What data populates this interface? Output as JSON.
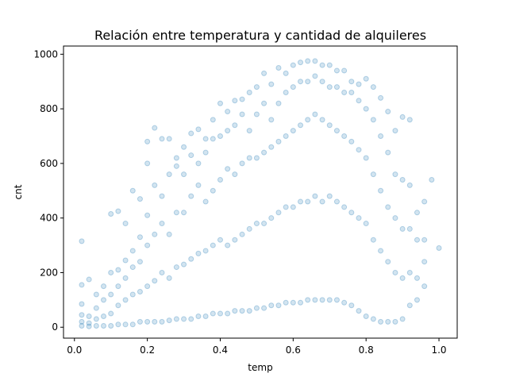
{
  "chart_data": {
    "type": "scatter",
    "title": "Relación entre temperatura y cantidad de alquileres",
    "xlabel": "temp",
    "ylabel": "cnt",
    "xlim": [
      -0.03,
      1.05
    ],
    "ylim": [
      -40,
      1030
    ],
    "x_ticks": [
      0.0,
      0.2,
      0.4,
      0.6,
      0.8,
      1.0
    ],
    "x_tick_labels": [
      "0.0",
      "0.2",
      "0.4",
      "0.6",
      "0.8",
      "1.0"
    ],
    "y_ticks": [
      0,
      200,
      400,
      600,
      800,
      1000
    ],
    "y_tick_labels": [
      "0",
      "200",
      "400",
      "600",
      "800",
      "1000"
    ],
    "grid": false,
    "marker_color": "#1f77b4",
    "marker_alpha": 0.2,
    "series": [
      {
        "points": [
          [
            0.02,
            5
          ],
          [
            0.02,
            20
          ],
          [
            0.02,
            45
          ],
          [
            0.02,
            85
          ],
          [
            0.02,
            155
          ],
          [
            0.02,
            315
          ],
          [
            0.04,
            3
          ],
          [
            0.04,
            15
          ],
          [
            0.04,
            40
          ],
          [
            0.04,
            175
          ],
          [
            0.06,
            5
          ],
          [
            0.06,
            30
          ],
          [
            0.06,
            70
          ],
          [
            0.06,
            120
          ],
          [
            0.08,
            5
          ],
          [
            0.08,
            40
          ],
          [
            0.08,
            100
          ],
          [
            0.08,
            150
          ],
          [
            0.1,
            5
          ],
          [
            0.1,
            50
          ],
          [
            0.1,
            120
          ],
          [
            0.1,
            200
          ],
          [
            0.1,
            415
          ],
          [
            0.12,
            10
          ],
          [
            0.12,
            80
          ],
          [
            0.12,
            150
          ],
          [
            0.12,
            210
          ],
          [
            0.12,
            425
          ],
          [
            0.14,
            10
          ],
          [
            0.14,
            100
          ],
          [
            0.14,
            180
          ],
          [
            0.14,
            245
          ],
          [
            0.14,
            380
          ],
          [
            0.16,
            10
          ],
          [
            0.16,
            120
          ],
          [
            0.16,
            220
          ],
          [
            0.16,
            280
          ],
          [
            0.16,
            500
          ],
          [
            0.18,
            20
          ],
          [
            0.18,
            130
          ],
          [
            0.18,
            240
          ],
          [
            0.18,
            330
          ],
          [
            0.18,
            470
          ],
          [
            0.2,
            20
          ],
          [
            0.2,
            150
          ],
          [
            0.2,
            300
          ],
          [
            0.2,
            410
          ],
          [
            0.2,
            600
          ],
          [
            0.2,
            680
          ],
          [
            0.22,
            20
          ],
          [
            0.22,
            170
          ],
          [
            0.22,
            340
          ],
          [
            0.22,
            520
          ],
          [
            0.22,
            730
          ],
          [
            0.24,
            20
          ],
          [
            0.24,
            200
          ],
          [
            0.24,
            380
          ],
          [
            0.24,
            480
          ],
          [
            0.24,
            690
          ],
          [
            0.26,
            25
          ],
          [
            0.26,
            180
          ],
          [
            0.26,
            340
          ],
          [
            0.26,
            560
          ],
          [
            0.26,
            690
          ],
          [
            0.28,
            30
          ],
          [
            0.28,
            220
          ],
          [
            0.28,
            420
          ],
          [
            0.28,
            590
          ],
          [
            0.28,
            620
          ],
          [
            0.3,
            30
          ],
          [
            0.3,
            230
          ],
          [
            0.3,
            420
          ],
          [
            0.3,
            560
          ],
          [
            0.3,
            660
          ],
          [
            0.32,
            30
          ],
          [
            0.32,
            250
          ],
          [
            0.32,
            480
          ],
          [
            0.32,
            630
          ],
          [
            0.32,
            710
          ],
          [
            0.34,
            40
          ],
          [
            0.34,
            270
          ],
          [
            0.34,
            520
          ],
          [
            0.34,
            600
          ],
          [
            0.34,
            725
          ],
          [
            0.36,
            40
          ],
          [
            0.36,
            280
          ],
          [
            0.36,
            460
          ],
          [
            0.36,
            640
          ],
          [
            0.36,
            690
          ],
          [
            0.38,
            50
          ],
          [
            0.38,
            300
          ],
          [
            0.38,
            500
          ],
          [
            0.38,
            690
          ],
          [
            0.38,
            760
          ],
          [
            0.4,
            50
          ],
          [
            0.4,
            320
          ],
          [
            0.4,
            540
          ],
          [
            0.4,
            700
          ],
          [
            0.4,
            820
          ],
          [
            0.42,
            50
          ],
          [
            0.42,
            300
          ],
          [
            0.42,
            580
          ],
          [
            0.42,
            720
          ],
          [
            0.42,
            790
          ],
          [
            0.44,
            60
          ],
          [
            0.44,
            320
          ],
          [
            0.44,
            560
          ],
          [
            0.44,
            740
          ],
          [
            0.44,
            830
          ],
          [
            0.46,
            60
          ],
          [
            0.46,
            340
          ],
          [
            0.46,
            600
          ],
          [
            0.46,
            780
          ],
          [
            0.46,
            835
          ],
          [
            0.48,
            60
          ],
          [
            0.48,
            360
          ],
          [
            0.48,
            620
          ],
          [
            0.48,
            720
          ],
          [
            0.48,
            860
          ],
          [
            0.5,
            70
          ],
          [
            0.5,
            380
          ],
          [
            0.5,
            620
          ],
          [
            0.5,
            780
          ],
          [
            0.5,
            880
          ],
          [
            0.52,
            70
          ],
          [
            0.52,
            380
          ],
          [
            0.52,
            640
          ],
          [
            0.52,
            820
          ],
          [
            0.52,
            930
          ],
          [
            0.54,
            80
          ],
          [
            0.54,
            400
          ],
          [
            0.54,
            660
          ],
          [
            0.54,
            760
          ],
          [
            0.54,
            890
          ],
          [
            0.56,
            80
          ],
          [
            0.56,
            420
          ],
          [
            0.56,
            680
          ],
          [
            0.56,
            820
          ],
          [
            0.56,
            950
          ],
          [
            0.58,
            90
          ],
          [
            0.58,
            440
          ],
          [
            0.58,
            700
          ],
          [
            0.58,
            860
          ],
          [
            0.58,
            930
          ],
          [
            0.6,
            90
          ],
          [
            0.6,
            440
          ],
          [
            0.6,
            720
          ],
          [
            0.6,
            880
          ],
          [
            0.6,
            960
          ],
          [
            0.62,
            90
          ],
          [
            0.62,
            460
          ],
          [
            0.62,
            740
          ],
          [
            0.62,
            900
          ],
          [
            0.62,
            970
          ],
          [
            0.64,
            100
          ],
          [
            0.64,
            460
          ],
          [
            0.64,
            760
          ],
          [
            0.64,
            900
          ],
          [
            0.64,
            975
          ],
          [
            0.66,
            100
          ],
          [
            0.66,
            480
          ],
          [
            0.66,
            780
          ],
          [
            0.66,
            920
          ],
          [
            0.66,
            975
          ],
          [
            0.68,
            100
          ],
          [
            0.68,
            460
          ],
          [
            0.68,
            760
          ],
          [
            0.68,
            900
          ],
          [
            0.68,
            960
          ],
          [
            0.7,
            100
          ],
          [
            0.7,
            480
          ],
          [
            0.7,
            740
          ],
          [
            0.7,
            880
          ],
          [
            0.7,
            960
          ],
          [
            0.72,
            100
          ],
          [
            0.72,
            460
          ],
          [
            0.72,
            720
          ],
          [
            0.72,
            880
          ],
          [
            0.72,
            940
          ],
          [
            0.74,
            90
          ],
          [
            0.74,
            440
          ],
          [
            0.74,
            700
          ],
          [
            0.74,
            860
          ],
          [
            0.74,
            940
          ],
          [
            0.76,
            80
          ],
          [
            0.76,
            420
          ],
          [
            0.76,
            680
          ],
          [
            0.76,
            860
          ],
          [
            0.76,
            900
          ],
          [
            0.78,
            60
          ],
          [
            0.78,
            400
          ],
          [
            0.78,
            650
          ],
          [
            0.78,
            830
          ],
          [
            0.78,
            890
          ],
          [
            0.8,
            40
          ],
          [
            0.8,
            380
          ],
          [
            0.8,
            620
          ],
          [
            0.8,
            800
          ],
          [
            0.8,
            910
          ],
          [
            0.82,
            30
          ],
          [
            0.82,
            320
          ],
          [
            0.82,
            560
          ],
          [
            0.82,
            760
          ],
          [
            0.82,
            880
          ],
          [
            0.84,
            20
          ],
          [
            0.84,
            280
          ],
          [
            0.84,
            500
          ],
          [
            0.84,
            700
          ],
          [
            0.84,
            840
          ],
          [
            0.86,
            20
          ],
          [
            0.86,
            240
          ],
          [
            0.86,
            440
          ],
          [
            0.86,
            640
          ],
          [
            0.86,
            790
          ],
          [
            0.88,
            20
          ],
          [
            0.88,
            200
          ],
          [
            0.88,
            400
          ],
          [
            0.88,
            560
          ],
          [
            0.88,
            720
          ],
          [
            0.9,
            30
          ],
          [
            0.9,
            180
          ],
          [
            0.9,
            360
          ],
          [
            0.9,
            540
          ],
          [
            0.9,
            770
          ],
          [
            0.92,
            80
          ],
          [
            0.92,
            200
          ],
          [
            0.92,
            360
          ],
          [
            0.92,
            520
          ],
          [
            0.92,
            760
          ],
          [
            0.94,
            100
          ],
          [
            0.94,
            180
          ],
          [
            0.94,
            320
          ],
          [
            0.94,
            420
          ],
          [
            0.96,
            150
          ],
          [
            0.96,
            240
          ],
          [
            0.96,
            320
          ],
          [
            0.96,
            460
          ],
          [
            0.98,
            540
          ],
          [
            1.0,
            290
          ]
        ]
      }
    ]
  }
}
